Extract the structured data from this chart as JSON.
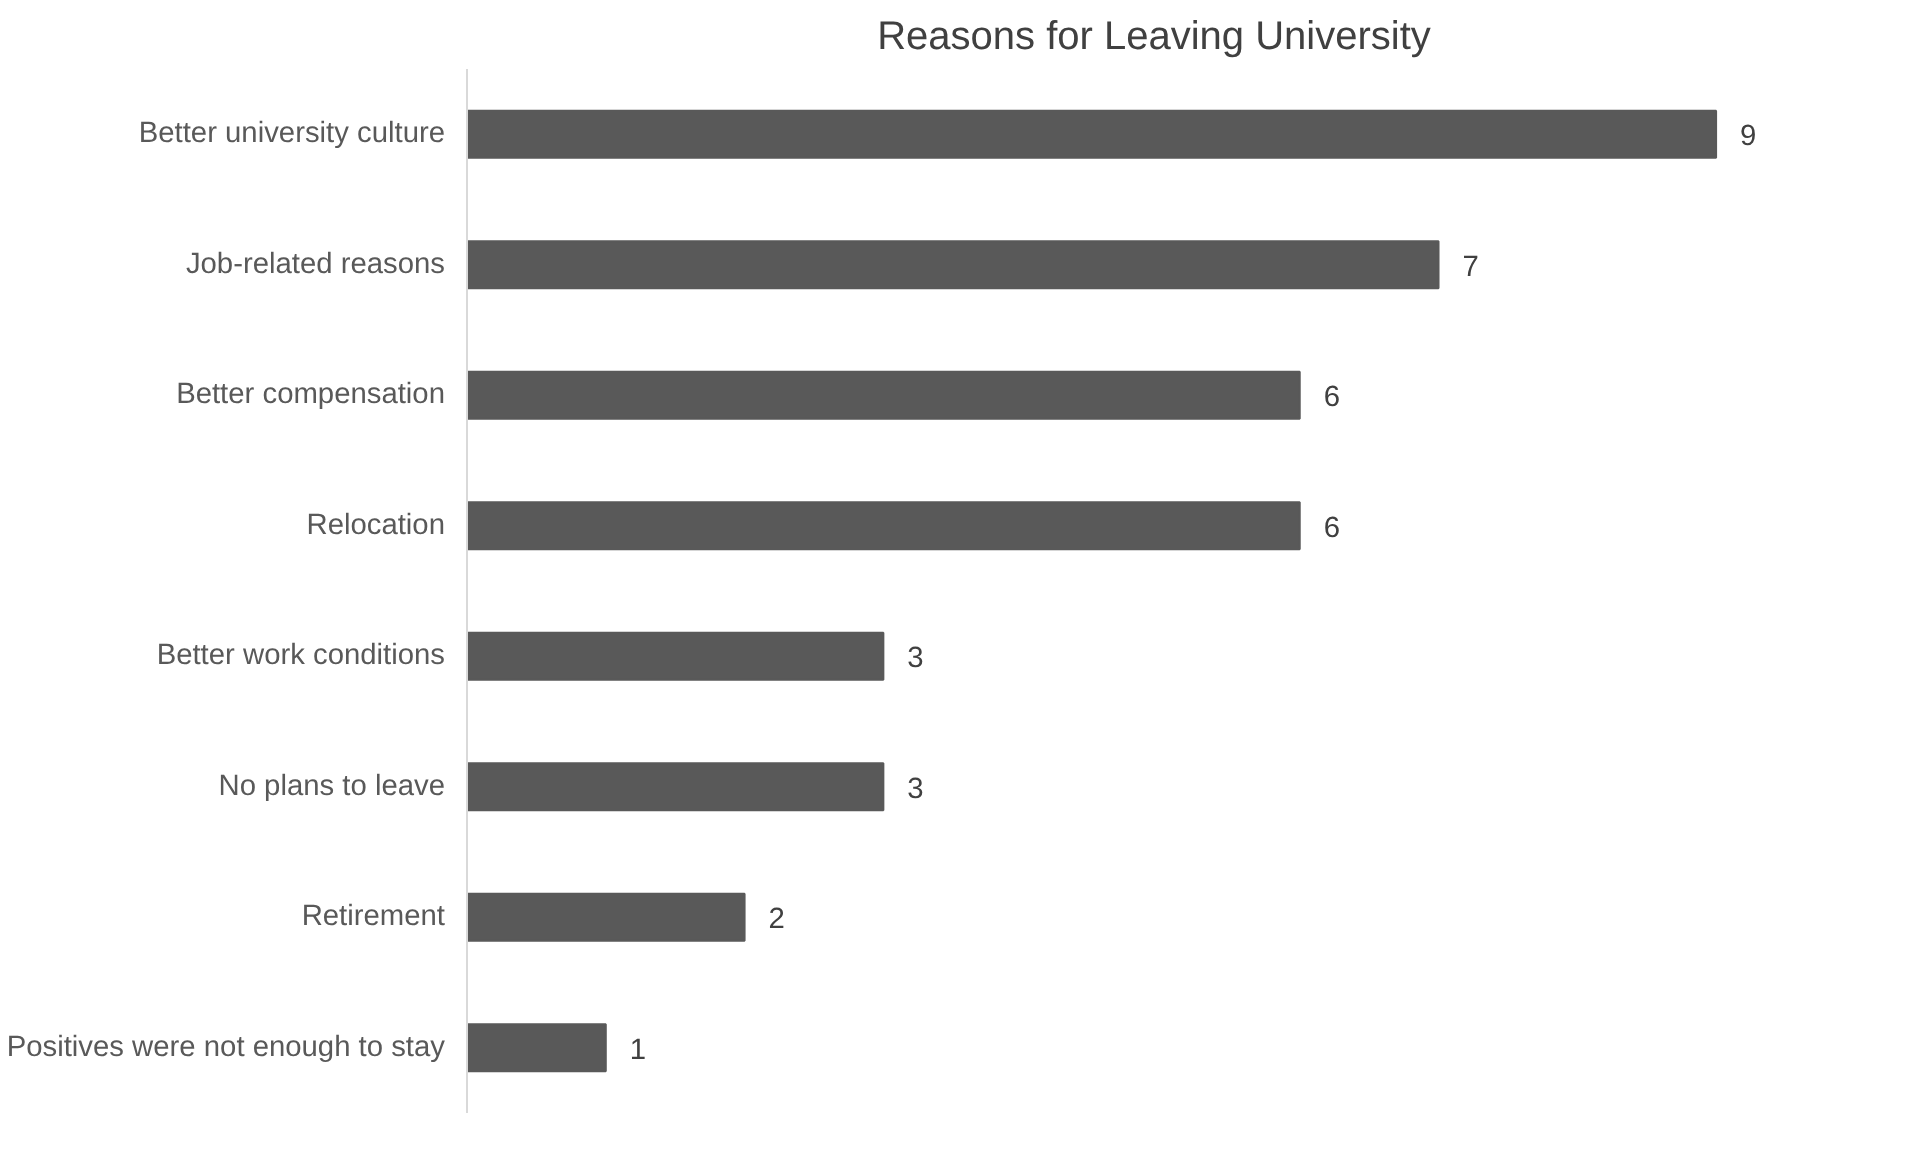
{
  "chart_data": {
    "type": "bar",
    "orientation": "horizontal",
    "title": "Reasons for Leaving University",
    "categories": [
      "Better university culture",
      "Job-related reasons",
      "Better compensation",
      "Relocation",
      "Better work conditions",
      "No plans to leave",
      "Retirement",
      "Positives were not enough to stay"
    ],
    "values": [
      9,
      7,
      6,
      6,
      3,
      3,
      2,
      1
    ],
    "color": "#595959",
    "data_labels": true
  }
}
